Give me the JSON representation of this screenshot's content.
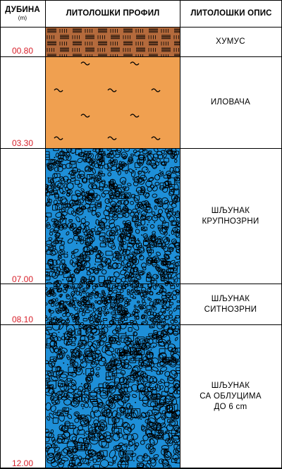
{
  "header": {
    "depth_title": "ДУБИНА",
    "depth_unit": "(m)",
    "profile_title": "ЛИТОЛОШКИ ПРОФИЛ",
    "description_title": "ЛИТОЛОШКИ ОПИС"
  },
  "layers": [
    {
      "bottom_depth": "00.80",
      "description": [
        "ХУМУС"
      ],
      "pattern": "humus",
      "color": "#b46a3c"
    },
    {
      "bottom_depth": "03.30",
      "description": [
        "ИЛОВАЧА"
      ],
      "pattern": "silt",
      "color": "#f0a050"
    },
    {
      "bottom_depth": "07.00",
      "description": [
        "ШЉУНАК",
        "КРУПНОЗРНИ"
      ],
      "pattern": "gravel-coarse",
      "color": "#1e8fd8"
    },
    {
      "bottom_depth": "08.10",
      "description": [
        "ШЉУНАК",
        "СИТНОЗРНИ"
      ],
      "pattern": "gravel-fine",
      "color": "#1e8fd8"
    },
    {
      "bottom_depth": "12.00",
      "description": [
        "ШЉУНАК",
        "СА ОБЛУЦИМА",
        "ДО 6 cm"
      ],
      "pattern": "gravel-pebbles",
      "color": "#1e8fd8"
    }
  ],
  "colors": {
    "depth_label": "#d8202a",
    "lines": "#000000"
  }
}
